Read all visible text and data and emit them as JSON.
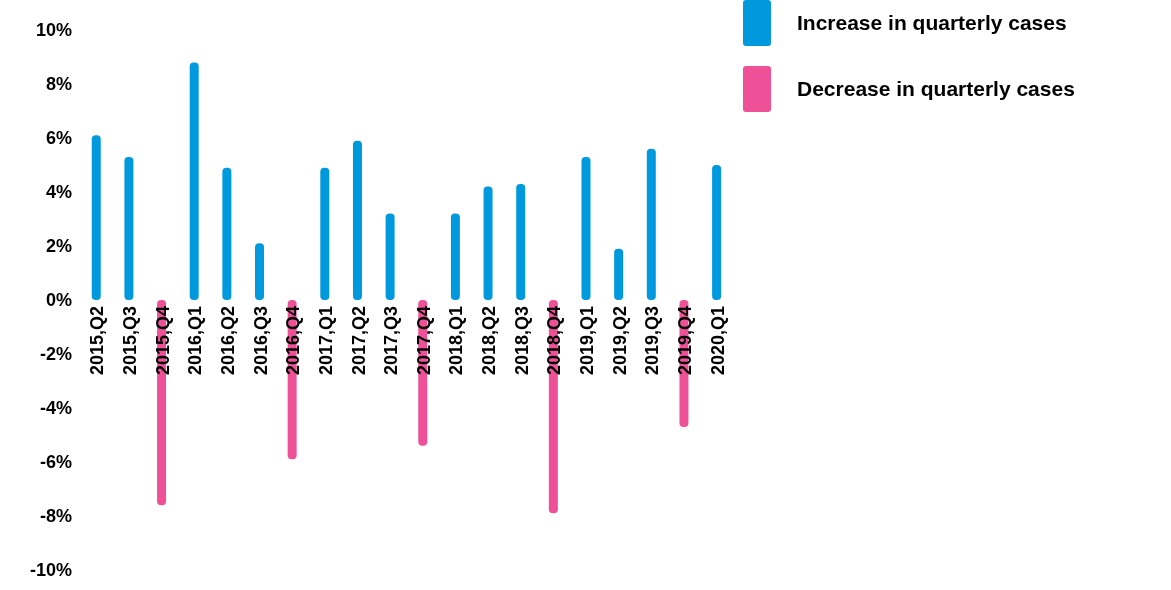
{
  "chart_data": {
    "type": "bar",
    "stacked": true,
    "categories": [
      "2015,Q2",
      "2015,Q3",
      "2015,Q4",
      "2016,Q1",
      "2016,Q2",
      "2016,Q3",
      "2016,Q4",
      "2017,Q1",
      "2017,Q2",
      "2017,Q3",
      "2017,Q4",
      "2018,Q1",
      "2018,Q2",
      "2018,Q3",
      "2018,Q4",
      "2019,Q1",
      "2019,Q2",
      "2019,Q3",
      "2019,Q4",
      "2020,Q1"
    ],
    "series": [
      {
        "name": "Increase in quarterly cases",
        "color": "#0099dd",
        "values": [
          6.1,
          5.3,
          null,
          8.8,
          4.9,
          2.1,
          null,
          4.9,
          5.9,
          3.2,
          null,
          3.2,
          4.2,
          4.3,
          null,
          5.3,
          1.9,
          5.6,
          null,
          5.0
        ]
      },
      {
        "name": "Decrease in quarterly cases",
        "color": "#ef5198",
        "values": [
          null,
          null,
          -7.6,
          null,
          null,
          null,
          -5.9,
          null,
          null,
          null,
          -5.4,
          null,
          null,
          null,
          -7.9,
          null,
          null,
          null,
          -4.7,
          null
        ]
      }
    ],
    "ylim": [
      -10,
      10
    ],
    "yticks": [
      {
        "value": -10,
        "label": "-10%"
      },
      {
        "value": -8,
        "label": "-8%"
      },
      {
        "value": -6,
        "label": "-6%"
      },
      {
        "value": -4,
        "label": "-4%"
      },
      {
        "value": -2,
        "label": "-2%"
      },
      {
        "value": 0,
        "label": "0%"
      },
      {
        "value": 2,
        "label": "2%"
      },
      {
        "value": 4,
        "label": "4%"
      },
      {
        "value": 6,
        "label": "6%"
      },
      {
        "value": 8,
        "label": "8%"
      },
      {
        "value": 10,
        "label": "10%"
      }
    ],
    "grid": false,
    "legend": "top right"
  }
}
